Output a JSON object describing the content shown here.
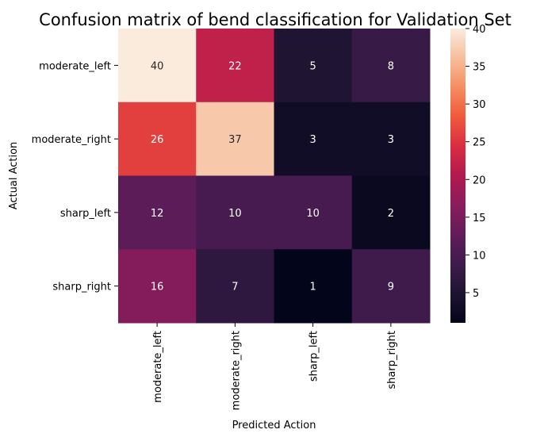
{
  "chart_data": {
    "type": "heatmap",
    "title": "Confusion matrix of bend classification for Validation Set",
    "xlabel": "Predicted Action",
    "ylabel": "Actual Action",
    "x_categories": [
      "moderate_left",
      "moderate_right",
      "sharp_left",
      "sharp_right"
    ],
    "y_categories": [
      "moderate_left",
      "moderate_right",
      "sharp_left",
      "sharp_right"
    ],
    "values": [
      [
        40,
        22,
        5,
        8
      ],
      [
        26,
        37,
        3,
        3
      ],
      [
        12,
        10,
        10,
        2
      ],
      [
        16,
        7,
        1,
        9
      ]
    ],
    "colorbar": {
      "min": 1,
      "max": 40,
      "ticks": [
        5,
        10,
        15,
        20,
        25,
        30,
        35,
        40
      ],
      "colormap": "rocket"
    },
    "grid": false
  }
}
